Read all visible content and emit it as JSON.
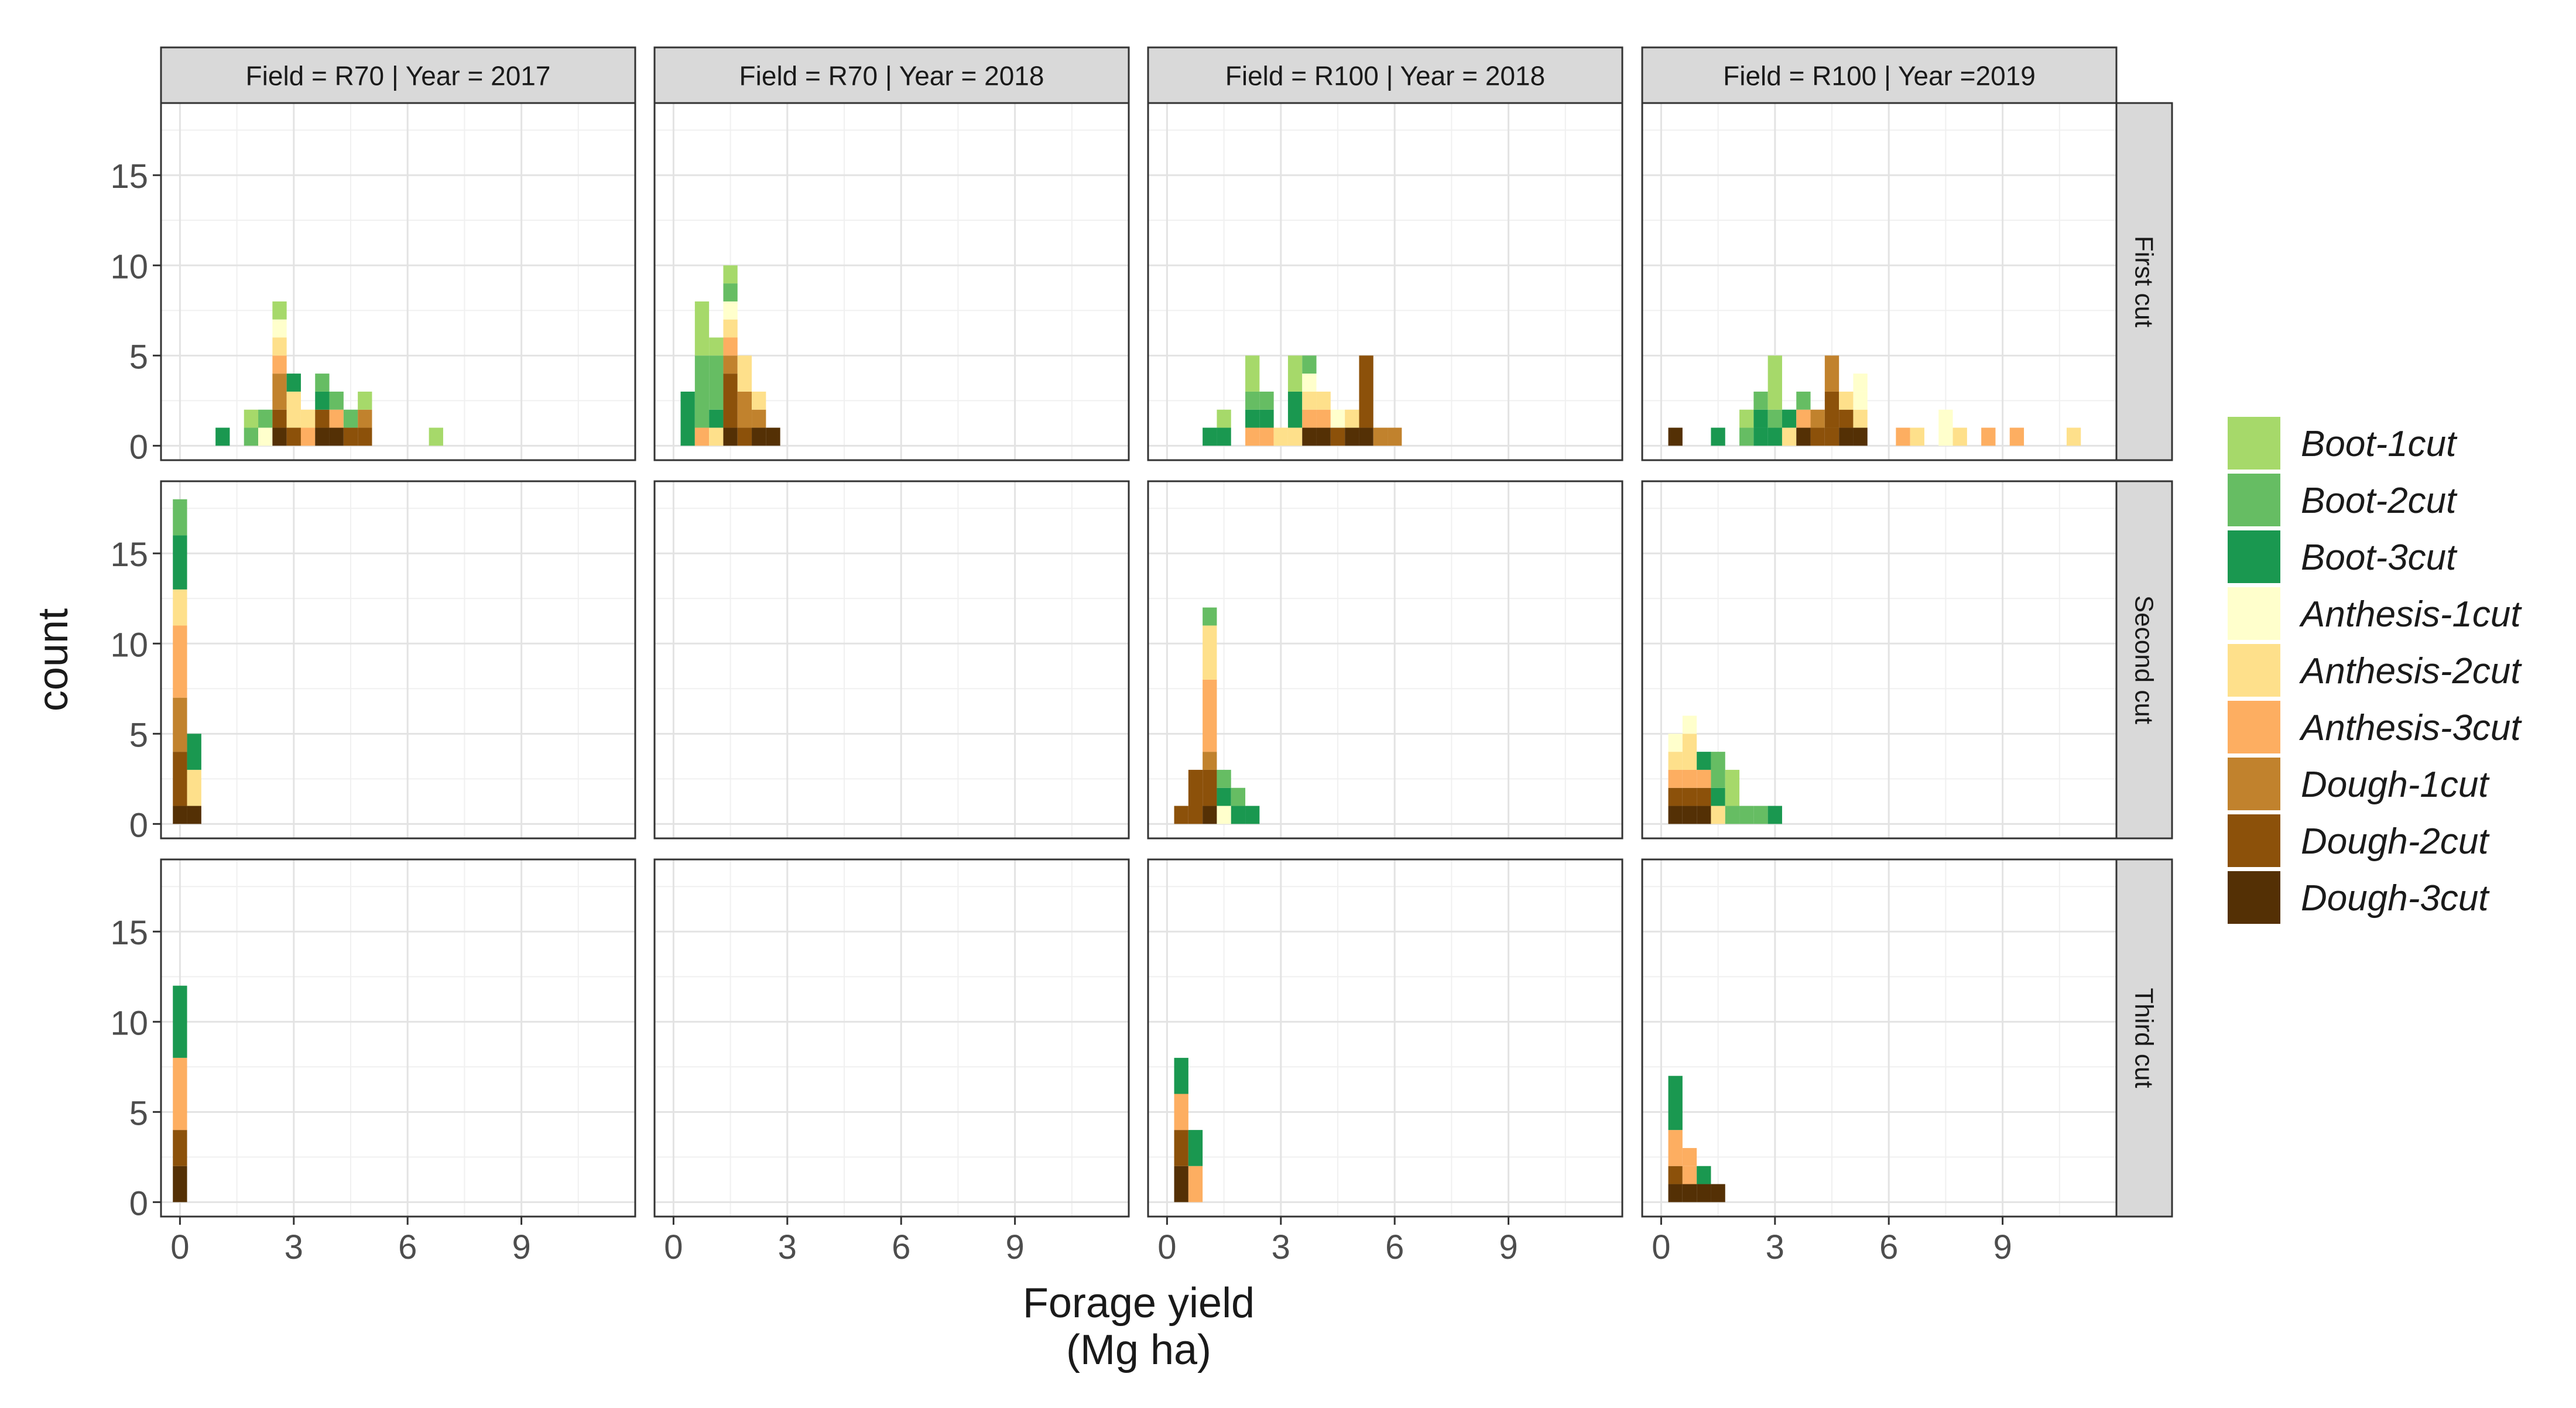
{
  "chart_data": {
    "type": "histogram",
    "layout": "faceted grid",
    "xlabel": "Forage yield\n(Mg ha)",
    "ylabel": "count",
    "xlim": [
      -0.5,
      12
    ],
    "ylim": [
      -0.8,
      19
    ],
    "x_ticks": [
      0,
      3,
      6,
      9
    ],
    "y_ticks": [
      0,
      5,
      10,
      15
    ],
    "bin_width": 0.375,
    "grid": true,
    "legend_position": "right",
    "legend": [
      {
        "key": "B1",
        "label": "Boot-1cut",
        "color": "#A6D96A"
      },
      {
        "key": "B2",
        "label": "Boot-2cut",
        "color": "#66BD63"
      },
      {
        "key": "B3",
        "label": "Boot-3cut",
        "color": "#1A9850"
      },
      {
        "key": "A1",
        "label": "Anthesis-1cut",
        "color": "#FFFFCC"
      },
      {
        "key": "A2",
        "label": "Anthesis-2cut",
        "color": "#FEE08B"
      },
      {
        "key": "A3",
        "label": "Anthesis-3cut",
        "color": "#FDAE61"
      },
      {
        "key": "D1",
        "label": "Dough-1cut",
        "color": "#C1822D"
      },
      {
        "key": "D2",
        "label": "Dough-2cut",
        "color": "#8C510A"
      },
      {
        "key": "D3",
        "label": "Dough-3cut",
        "color": "#543005"
      }
    ],
    "columns": [
      "Field = R70  | Year = 2017",
      "Field = R70  | Year = 2018",
      "Field = R100 | Year = 2018",
      "Field = R100 | Year =2019"
    ],
    "rows": [
      "First cut",
      "Second cut",
      "Third cut"
    ],
    "panels": [
      [
        [
          {
            "x": 1.125,
            "counts": {
              "B3": 1
            }
          },
          {
            "x": 1.875,
            "counts": {
              "B2": 1,
              "B1": 1
            }
          },
          {
            "x": 2.25,
            "counts": {
              "A1": 1,
              "B2": 1
            }
          },
          {
            "x": 2.625,
            "counts": {
              "D3": 1,
              "D2": 1,
              "A3": 1,
              "A3b": 0,
              "D1": 2,
              "A2": 1,
              "A1": 1,
              "B1": 1
            }
          },
          {
            "x": 3.0,
            "counts": {
              "D2": 1,
              "A2": 2,
              "B3": 1
            }
          },
          {
            "x": 3.375,
            "counts": {
              "A3": 1,
              "A2": 1
            }
          },
          {
            "x": 3.75,
            "counts": {
              "D3": 1,
              "D2": 1,
              "B2": 1,
              "B3": 1
            }
          },
          {
            "x": 4.125,
            "counts": {
              "D3": 1,
              "A3": 1,
              "B2": 1
            }
          },
          {
            "x": 4.5,
            "counts": {
              "D2": 1,
              "B2": 1
            }
          },
          {
            "x": 4.875,
            "counts": {
              "D2": 1,
              "D1": 1,
              "B1": 1
            }
          },
          {
            "x": 6.75,
            "counts": {
              "B1": 1
            }
          }
        ],
        [
          {
            "x": 0.375,
            "counts": {
              "B3": 3
            }
          },
          {
            "x": 0.75,
            "counts": {
              "A3": 1,
              "B2": 4,
              "B1": 3
            }
          },
          {
            "x": 1.125,
            "counts": {
              "A2": 1,
              "B2": 3,
              "B3": 1,
              "B1": 1
            }
          },
          {
            "x": 1.5,
            "counts": {
              "D3": 1,
              "D2": 3,
              "A1": 1,
              "A2": 1,
              "A3": 1,
              "D1": 1,
              "B2": 1,
              "B1": 1
            }
          },
          {
            "x": 1.875,
            "counts": {
              "D2": 1,
              "D1": 2,
              "A2": 2
            }
          },
          {
            "x": 2.25,
            "counts": {
              "D3": 1,
              "D1": 1,
              "A2": 1
            }
          },
          {
            "x": 2.625,
            "counts": {
              "D3": 1
            }
          }
        ],
        [
          {
            "x": 1.125,
            "counts": {
              "B3": 1
            }
          },
          {
            "x": 1.5,
            "counts": {
              "B3": 1,
              "B1": 1
            }
          },
          {
            "x": 2.25,
            "counts": {
              "A3": 1,
              "B3": 1,
              "B2": 1,
              "B1": 2
            }
          },
          {
            "x": 2.625,
            "counts": {
              "A3": 1,
              "B3": 1,
              "B2": 1
            }
          },
          {
            "x": 3.0,
            "counts": {
              "A2": 1
            }
          },
          {
            "x": 3.375,
            "counts": {
              "A2": 1,
              "B3": 2,
              "B1": 2
            }
          },
          {
            "x": 3.75,
            "counts": {
              "D3": 1,
              "A3": 1,
              "A2": 1,
              "B2": 1,
              "A1": 1
            }
          },
          {
            "x": 4.125,
            "counts": {
              "D3": 1,
              "A3": 1,
              "A2": 1
            }
          },
          {
            "x": 4.5,
            "counts": {
              "D2": 1,
              "A1": 1
            }
          },
          {
            "x": 4.875,
            "counts": {
              "D3": 1,
              "A2": 1
            }
          },
          {
            "x": 5.25,
            "counts": {
              "D3": 1,
              "D2": 4
            }
          },
          {
            "x": 5.625,
            "counts": {
              "D1": 1
            }
          },
          {
            "x": 6.0,
            "counts": {
              "D1": 1
            }
          }
        ],
        [
          {
            "x": 0.375,
            "counts": {
              "D3": 1
            }
          },
          {
            "x": 1.5,
            "counts": {
              "B3": 1
            }
          },
          {
            "x": 2.25,
            "counts": {
              "B2": 1,
              "B1": 1
            }
          },
          {
            "x": 2.625,
            "counts": {
              "B3": 1,
              "B2": 1,
              "B3b": 0,
              "B3c": 1
            }
          },
          {
            "x": 3.0,
            "counts": {
              "B3": 1,
              "B2": 1,
              "B1": 3
            }
          },
          {
            "x": 3.375,
            "counts": {
              "B3": 1,
              "A2": 1
            }
          },
          {
            "x": 3.75,
            "counts": {
              "D3": 1,
              "A3": 1,
              "B2": 1
            }
          },
          {
            "x": 4.125,
            "counts": {
              "D2": 1,
              "D1": 1
            }
          },
          {
            "x": 4.5,
            "counts": {
              "D2": 1,
              "D1": 2,
              "D2b": 2
            }
          },
          {
            "x": 4.875,
            "counts": {
              "D3": 1,
              "D2": 1,
              "A2": 1
            }
          },
          {
            "x": 5.25,
            "counts": {
              "D3": 1,
              "A1": 1,
              "A2": 1,
              "A1b": 1
            }
          },
          {
            "x": 6.375,
            "counts": {
              "A3": 1
            }
          },
          {
            "x": 6.75,
            "counts": {
              "A2": 1
            }
          },
          {
            "x": 7.5,
            "counts": {
              "A1": 2
            }
          },
          {
            "x": 7.875,
            "counts": {
              "A2": 1
            }
          },
          {
            "x": 8.625,
            "counts": {
              "A3": 1
            }
          },
          {
            "x": 9.375,
            "counts": {
              "A3": 1
            }
          },
          {
            "x": 10.875,
            "counts": {
              "A2": 1
            }
          }
        ]
      ],
      [
        [
          {
            "x": 0.0,
            "counts": {
              "D3": 1,
              "D2": 3,
              "D1": 3,
              "A3": 4,
              "A2": 2,
              "B3": 3,
              "B2": 2
            }
          },
          {
            "x": 0.375,
            "counts": {
              "D3": 1,
              "A2": 2,
              "B3": 2
            }
          }
        ],
        [],
        [
          {
            "x": 0.375,
            "counts": {
              "D2": 1
            }
          },
          {
            "x": 0.75,
            "counts": {
              "D2": 3
            }
          },
          {
            "x": 1.125,
            "counts": {
              "D3": 1,
              "D2": 2,
              "D1": 1,
              "A3": 4,
              "A2": 3,
              "B2": 1
            }
          },
          {
            "x": 1.5,
            "counts": {
              "A1": 1,
              "B3": 1,
              "B2": 1
            }
          },
          {
            "x": 1.875,
            "counts": {
              "B3": 1,
              "B2": 1
            }
          },
          {
            "x": 2.25,
            "counts": {
              "B3": 1
            }
          }
        ],
        [
          {
            "x": 0.375,
            "counts": {
              "D3": 1,
              "A3": 1,
              "A2": 1,
              "D2": 1,
              "A1": 1
            }
          },
          {
            "x": 0.75,
            "counts": {
              "D3": 1,
              "D2": 1,
              "A3": 1,
              "A2": 2,
              "A1": 1
            }
          },
          {
            "x": 1.125,
            "counts": {
              "D3": 1,
              "A3": 1,
              "D2": 1,
              "B3": 1
            }
          },
          {
            "x": 1.5,
            "counts": {
              "A2": 1,
              "B3": 1,
              "B2": 2
            }
          },
          {
            "x": 1.875,
            "counts": {
              "B2": 1,
              "B1": 2
            }
          },
          {
            "x": 2.25,
            "counts": {
              "B2": 1
            }
          },
          {
            "x": 2.625,
            "counts": {
              "B2": 1
            }
          },
          {
            "x": 3.0,
            "counts": {
              "B3": 1
            }
          }
        ]
      ],
      [
        [
          {
            "x": 0.0,
            "counts": {
              "D3": 2,
              "D2": 2,
              "A3": 4,
              "B3": 4
            }
          }
        ],
        [],
        [
          {
            "x": 0.375,
            "counts": {
              "D3": 2,
              "D2": 2,
              "A3": 2,
              "B3": 2
            }
          },
          {
            "x": 0.75,
            "counts": {
              "A3": 2,
              "B3": 2
            }
          }
        ],
        [
          {
            "x": 0.375,
            "counts": {
              "D3": 1,
              "D2": 1,
              "A3": 2,
              "B3": 3
            }
          },
          {
            "x": 0.75,
            "counts": {
              "D3": 1,
              "A3": 1,
              "A3b": 1
            }
          },
          {
            "x": 1.125,
            "counts": {
              "D3": 1,
              "B3": 1
            }
          },
          {
            "x": 1.5,
            "counts": {
              "D3": 1
            }
          }
        ]
      ]
    ]
  }
}
